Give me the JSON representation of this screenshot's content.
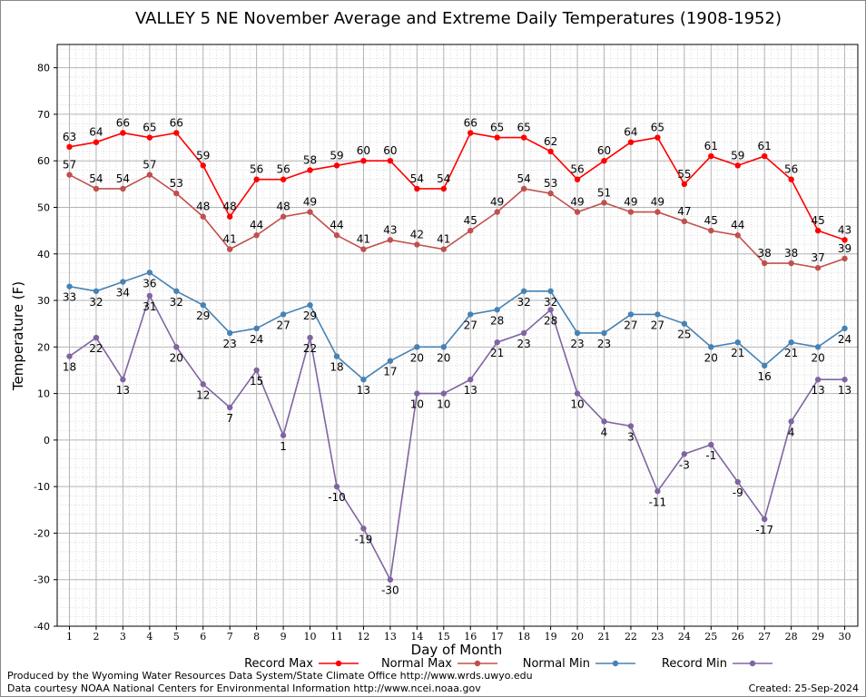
{
  "chart_data": {
    "type": "line",
    "title": "VALLEY 5 NE November Average and Extreme Daily Temperatures (1908-1952)",
    "xlabel": "Day of Month",
    "ylabel": "Temperature (F)",
    "xlim": [
      1,
      30
    ],
    "ylim": [
      -40,
      85
    ],
    "yticks": [
      -40,
      -30,
      -20,
      -10,
      0,
      10,
      20,
      30,
      40,
      50,
      60,
      70,
      80
    ],
    "grid": true,
    "legend_position": "bottom",
    "x": [
      1,
      2,
      3,
      4,
      5,
      6,
      7,
      8,
      9,
      10,
      11,
      12,
      13,
      14,
      15,
      16,
      17,
      18,
      19,
      20,
      21,
      22,
      23,
      24,
      25,
      26,
      27,
      28,
      29,
      30
    ],
    "series": [
      {
        "name": "Record Max",
        "color": "#ff0000",
        "values": [
          63,
          64,
          66,
          65,
          66,
          59,
          48,
          56,
          56,
          58,
          59,
          60,
          60,
          54,
          54,
          66,
          65,
          65,
          62,
          56,
          60,
          64,
          65,
          55,
          61,
          59,
          61,
          56,
          45,
          43
        ]
      },
      {
        "name": "Normal Max",
        "color": "#c0504d",
        "values": [
          57,
          54,
          54,
          57,
          53,
          48,
          41,
          44,
          48,
          49,
          44,
          41,
          43,
          42,
          41,
          45,
          49,
          54,
          53,
          49,
          51,
          49,
          49,
          47,
          45,
          44,
          38,
          38,
          37,
          39
        ]
      },
      {
        "name": "Normal Min",
        "color": "#4682b4",
        "values": [
          33,
          32,
          34,
          36,
          32,
          29,
          23,
          24,
          27,
          29,
          18,
          13,
          17,
          20,
          20,
          27,
          28,
          32,
          32,
          23,
          23,
          27,
          27,
          25,
          20,
          21,
          16,
          21,
          20,
          24
        ]
      },
      {
        "name": "Record Min",
        "color": "#8064a2",
        "values": [
          18,
          22,
          13,
          31,
          20,
          12,
          7,
          15,
          1,
          22,
          -10,
          -19,
          -30,
          10,
          10,
          13,
          21,
          23,
          28,
          10,
          4,
          3,
          -11,
          -3,
          -1,
          -9,
          -17,
          4,
          13,
          13
        ]
      }
    ]
  },
  "footer": {
    "credit_line1": "Produced by the Wyoming Water Resources Data System/State Climate Office http://www.wrds.uwyo.edu",
    "credit_line2": "Data courtesy NOAA National Centers for Environmental Information http://www.ncei.noaa.gov",
    "created": "Created:  25-Sep-2024"
  }
}
